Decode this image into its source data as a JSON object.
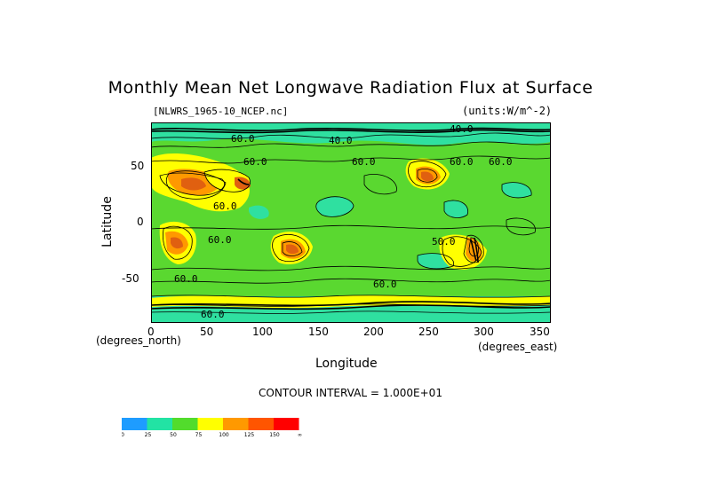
{
  "title": "Monthly Mean Net Longwave Radiation Flux at Surface",
  "file_label": "[NLWRS_1965-10_NCEP.nc]",
  "units_label": "(units:W/m^-2)",
  "y_axis": {
    "label": "Latitude",
    "unit_note": "(degrees_north)",
    "ticks": [
      "50",
      "0",
      "-50"
    ]
  },
  "x_axis": {
    "label": "Longitude",
    "unit_note": "(degrees_east)",
    "ticks": [
      "0",
      "50",
      "100",
      "150",
      "200",
      "250",
      "300",
      "350"
    ]
  },
  "contour_interval": "CONTOUR INTERVAL = 1.000E+01",
  "contour_labels": [
    "40.0",
    "60.0",
    "60.0",
    "40.0",
    "60.0",
    "60.0",
    "60.0",
    "60.0",
    "60.0",
    "60.0",
    "60.0",
    "60.0",
    "50.0"
  ],
  "legend": {
    "labels": [
      "0",
      "25",
      "50",
      "75",
      "100",
      "125",
      "150",
      "∞"
    ],
    "colors": [
      "#1e9cff",
      "#22e3a4",
      "#52dc2c",
      "#ffff00",
      "#ff9900",
      "#ff5500",
      "#ff0000"
    ]
  },
  "colors": {
    "land_green": "#5ad830",
    "ocean_teal": "#2fe0a0",
    "high_yellow": "#ffff00",
    "hot_orange": "#ff9900",
    "hot_red": "#e06010"
  }
}
